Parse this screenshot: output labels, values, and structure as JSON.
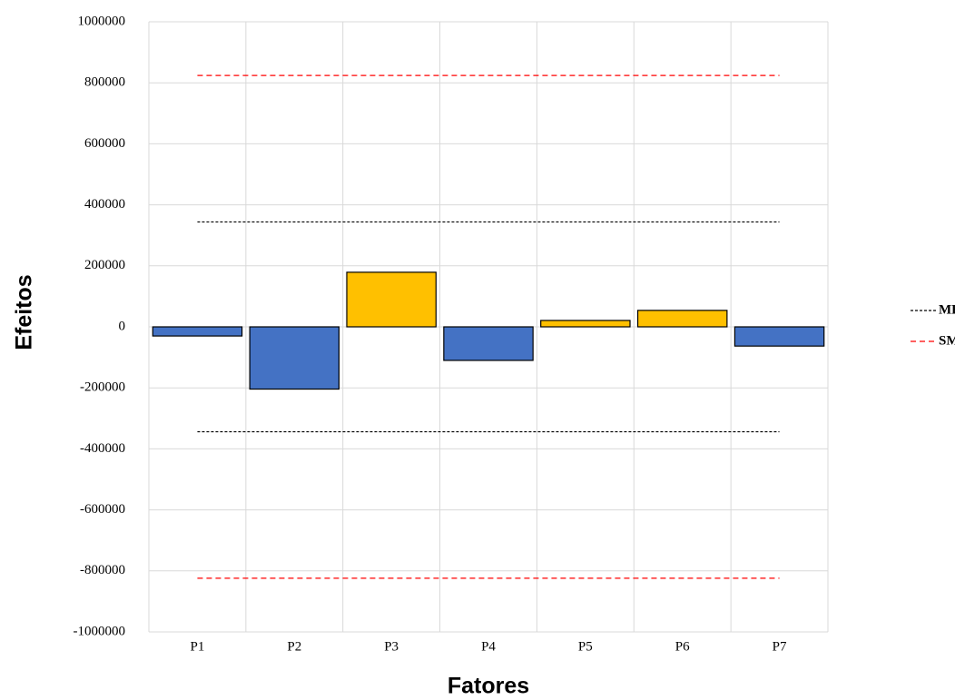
{
  "chart_data": {
    "type": "bar",
    "x_label": "Fatores",
    "y_label": "Efeitos",
    "categories": [
      "P1",
      "P2",
      "P3",
      "P4",
      "P5",
      "P6",
      "P7"
    ],
    "values": [
      -30000,
      -204000,
      179000,
      -110000,
      21000,
      54000,
      -63000
    ],
    "colors": [
      "#4472c4",
      "#4472c4",
      "#ffc000",
      "#4472c4",
      "#ffc000",
      "#ffc000",
      "#4472c4"
    ],
    "reference_lines": [
      {
        "name": "ME",
        "color": "#000000",
        "values": [
          344000,
          -344000
        ]
      },
      {
        "name": "SME",
        "color": "#ff0000",
        "values": [
          824000,
          -824000
        ]
      }
    ],
    "ylim": [
      -1000000,
      1000000
    ],
    "yticks": [
      -1000000,
      -800000,
      -600000,
      -400000,
      -200000,
      0,
      200000,
      400000,
      600000,
      800000,
      1000000
    ],
    "grid": true,
    "legend": "right"
  }
}
